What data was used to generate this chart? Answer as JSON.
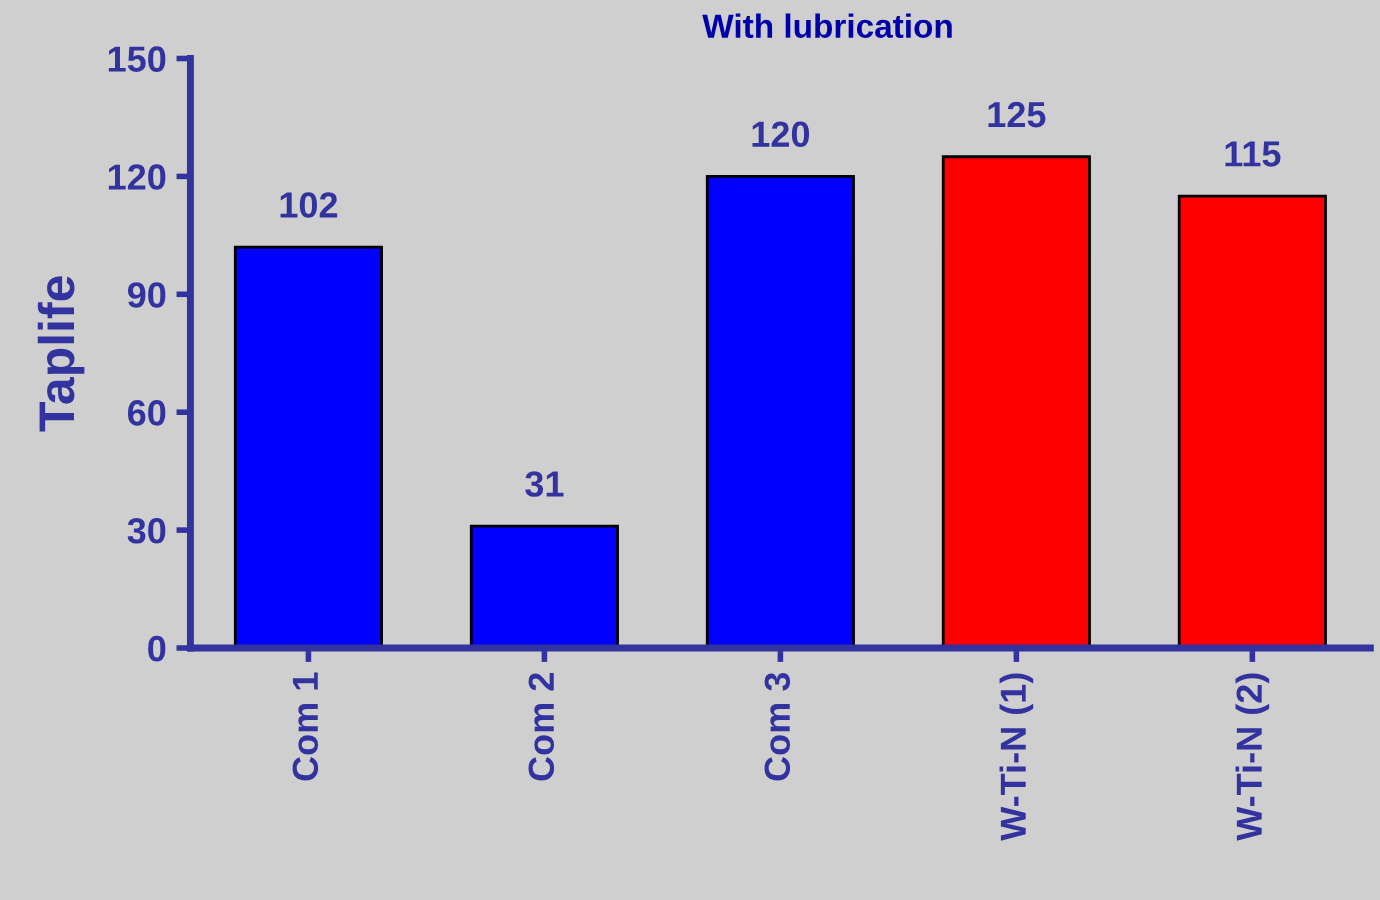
{
  "chart_data": {
    "type": "bar",
    "title": "With lubrication",
    "ylabel": "Taplife",
    "categories": [
      "Com 1",
      "Com 2",
      "Com 3",
      "W-Ti-N (1)",
      "W-Ti-N (2)"
    ],
    "values": [
      102,
      31,
      120,
      125,
      115
    ],
    "colors": [
      "#0000ff",
      "#0000ff",
      "#0000ff",
      "#ff0000",
      "#ff0000"
    ],
    "ylim": [
      0,
      150
    ],
    "yticks": [
      0,
      30,
      60,
      90,
      120,
      150
    ],
    "grid": false,
    "data_labels": true
  }
}
